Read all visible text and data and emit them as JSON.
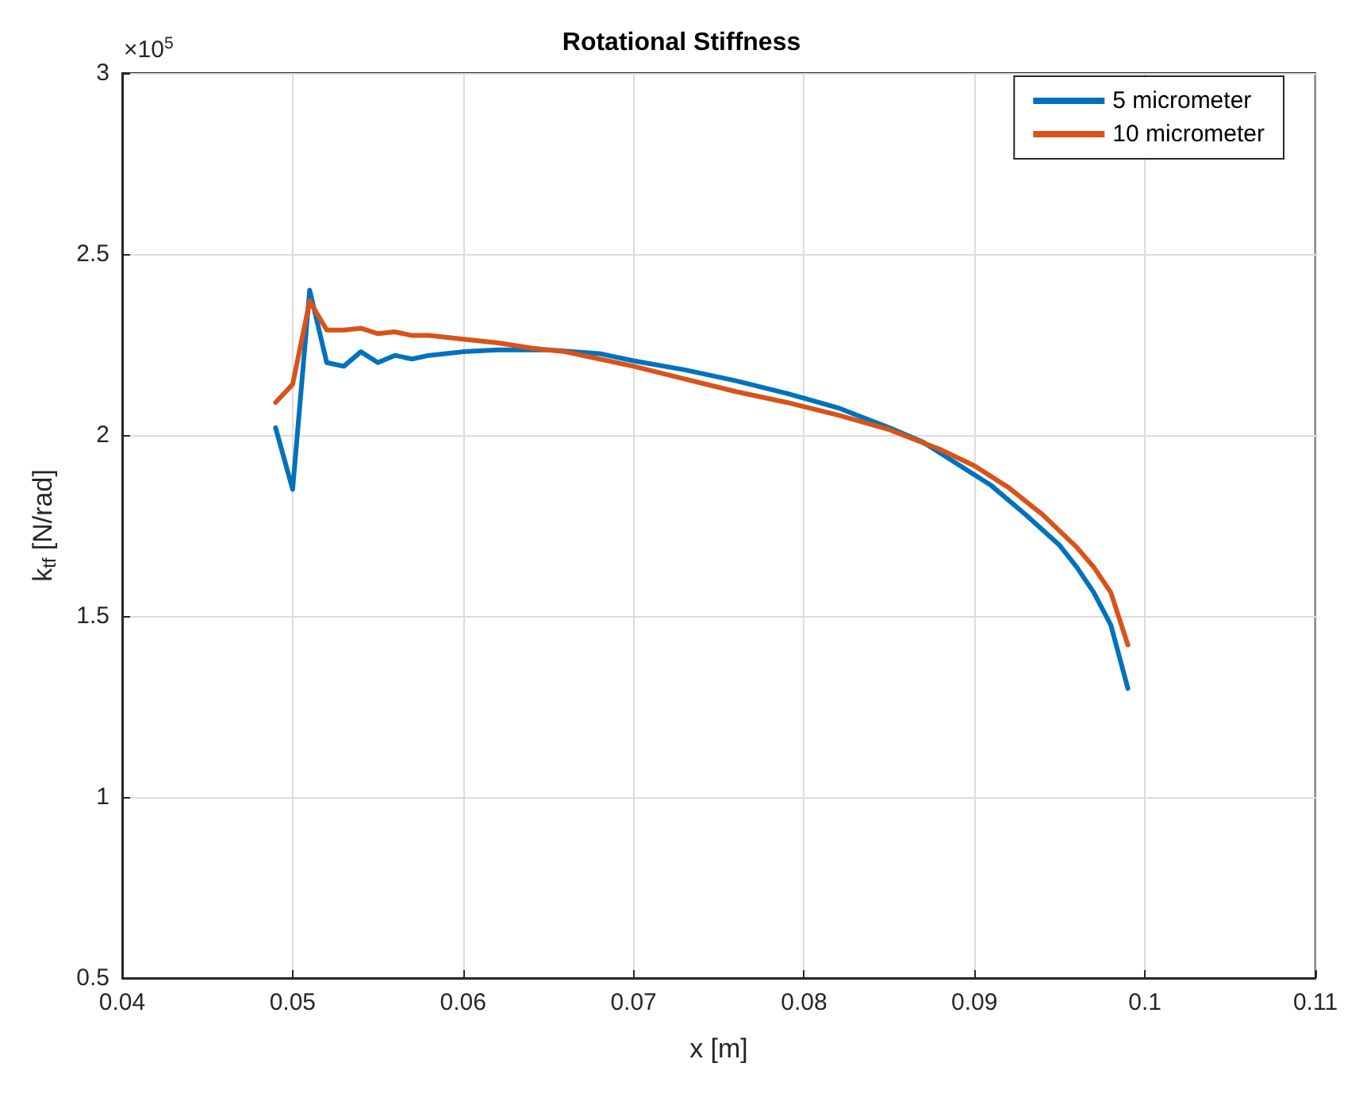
{
  "chart_data": {
    "type": "line",
    "title": "Rotational Stiffness",
    "xlabel": "x [m]",
    "ylabel": "k$_{tf}$ [N/rad]",
    "annotations": [
      "×10$^{5}$"
    ],
    "xlim": [
      0.04,
      0.11
    ],
    "xticks": [
      0.04,
      0.05,
      0.06,
      0.07,
      0.08,
      0.09,
      0.1,
      0.11
    ],
    "ylim": [
      0.5,
      3
    ],
    "yticks": [
      0.5,
      1,
      1.5,
      2,
      2.5,
      3
    ],
    "grid": true,
    "legend": "top right",
    "marker": "none",
    "line_style": "solid",
    "series": [
      {
        "name": "5 micrometer",
        "color": "#0072bd",
        "x": [
          0.049,
          0.05,
          0.051,
          0.052,
          0.053,
          0.054,
          0.055,
          0.056,
          0.057,
          0.058,
          0.06,
          0.062,
          0.065,
          0.068,
          0.07,
          0.073,
          0.076,
          0.079,
          0.082,
          0.085,
          0.087,
          0.089,
          0.091,
          0.093,
          0.095,
          0.096,
          0.097,
          0.098,
          0.099
        ],
        "values": [
          2.02,
          1.85,
          2.4,
          2.2,
          2.19,
          2.23,
          2.2,
          2.22,
          2.21,
          2.22,
          2.23,
          2.235,
          2.235,
          2.225,
          2.205,
          2.18,
          2.15,
          2.115,
          2.075,
          2.02,
          1.98,
          1.92,
          1.86,
          1.78,
          1.695,
          1.635,
          1.565,
          1.475,
          1.3
        ]
      },
      {
        "name": "10 micrometer",
        "color": "#d95319",
        "x": [
          0.049,
          0.05,
          0.051,
          0.052,
          0.053,
          0.054,
          0.055,
          0.056,
          0.057,
          0.058,
          0.06,
          0.062,
          0.064,
          0.066,
          0.068,
          0.07,
          0.073,
          0.076,
          0.079,
          0.082,
          0.085,
          0.088,
          0.09,
          0.092,
          0.094,
          0.096,
          0.097,
          0.098,
          0.099
        ],
        "values": [
          2.09,
          2.14,
          2.37,
          2.29,
          2.29,
          2.295,
          2.28,
          2.285,
          2.275,
          2.275,
          2.265,
          2.255,
          2.24,
          2.23,
          2.21,
          2.19,
          2.155,
          2.12,
          2.09,
          2.055,
          2.015,
          1.96,
          1.915,
          1.855,
          1.78,
          1.69,
          1.635,
          1.565,
          1.42
        ]
      }
    ]
  }
}
